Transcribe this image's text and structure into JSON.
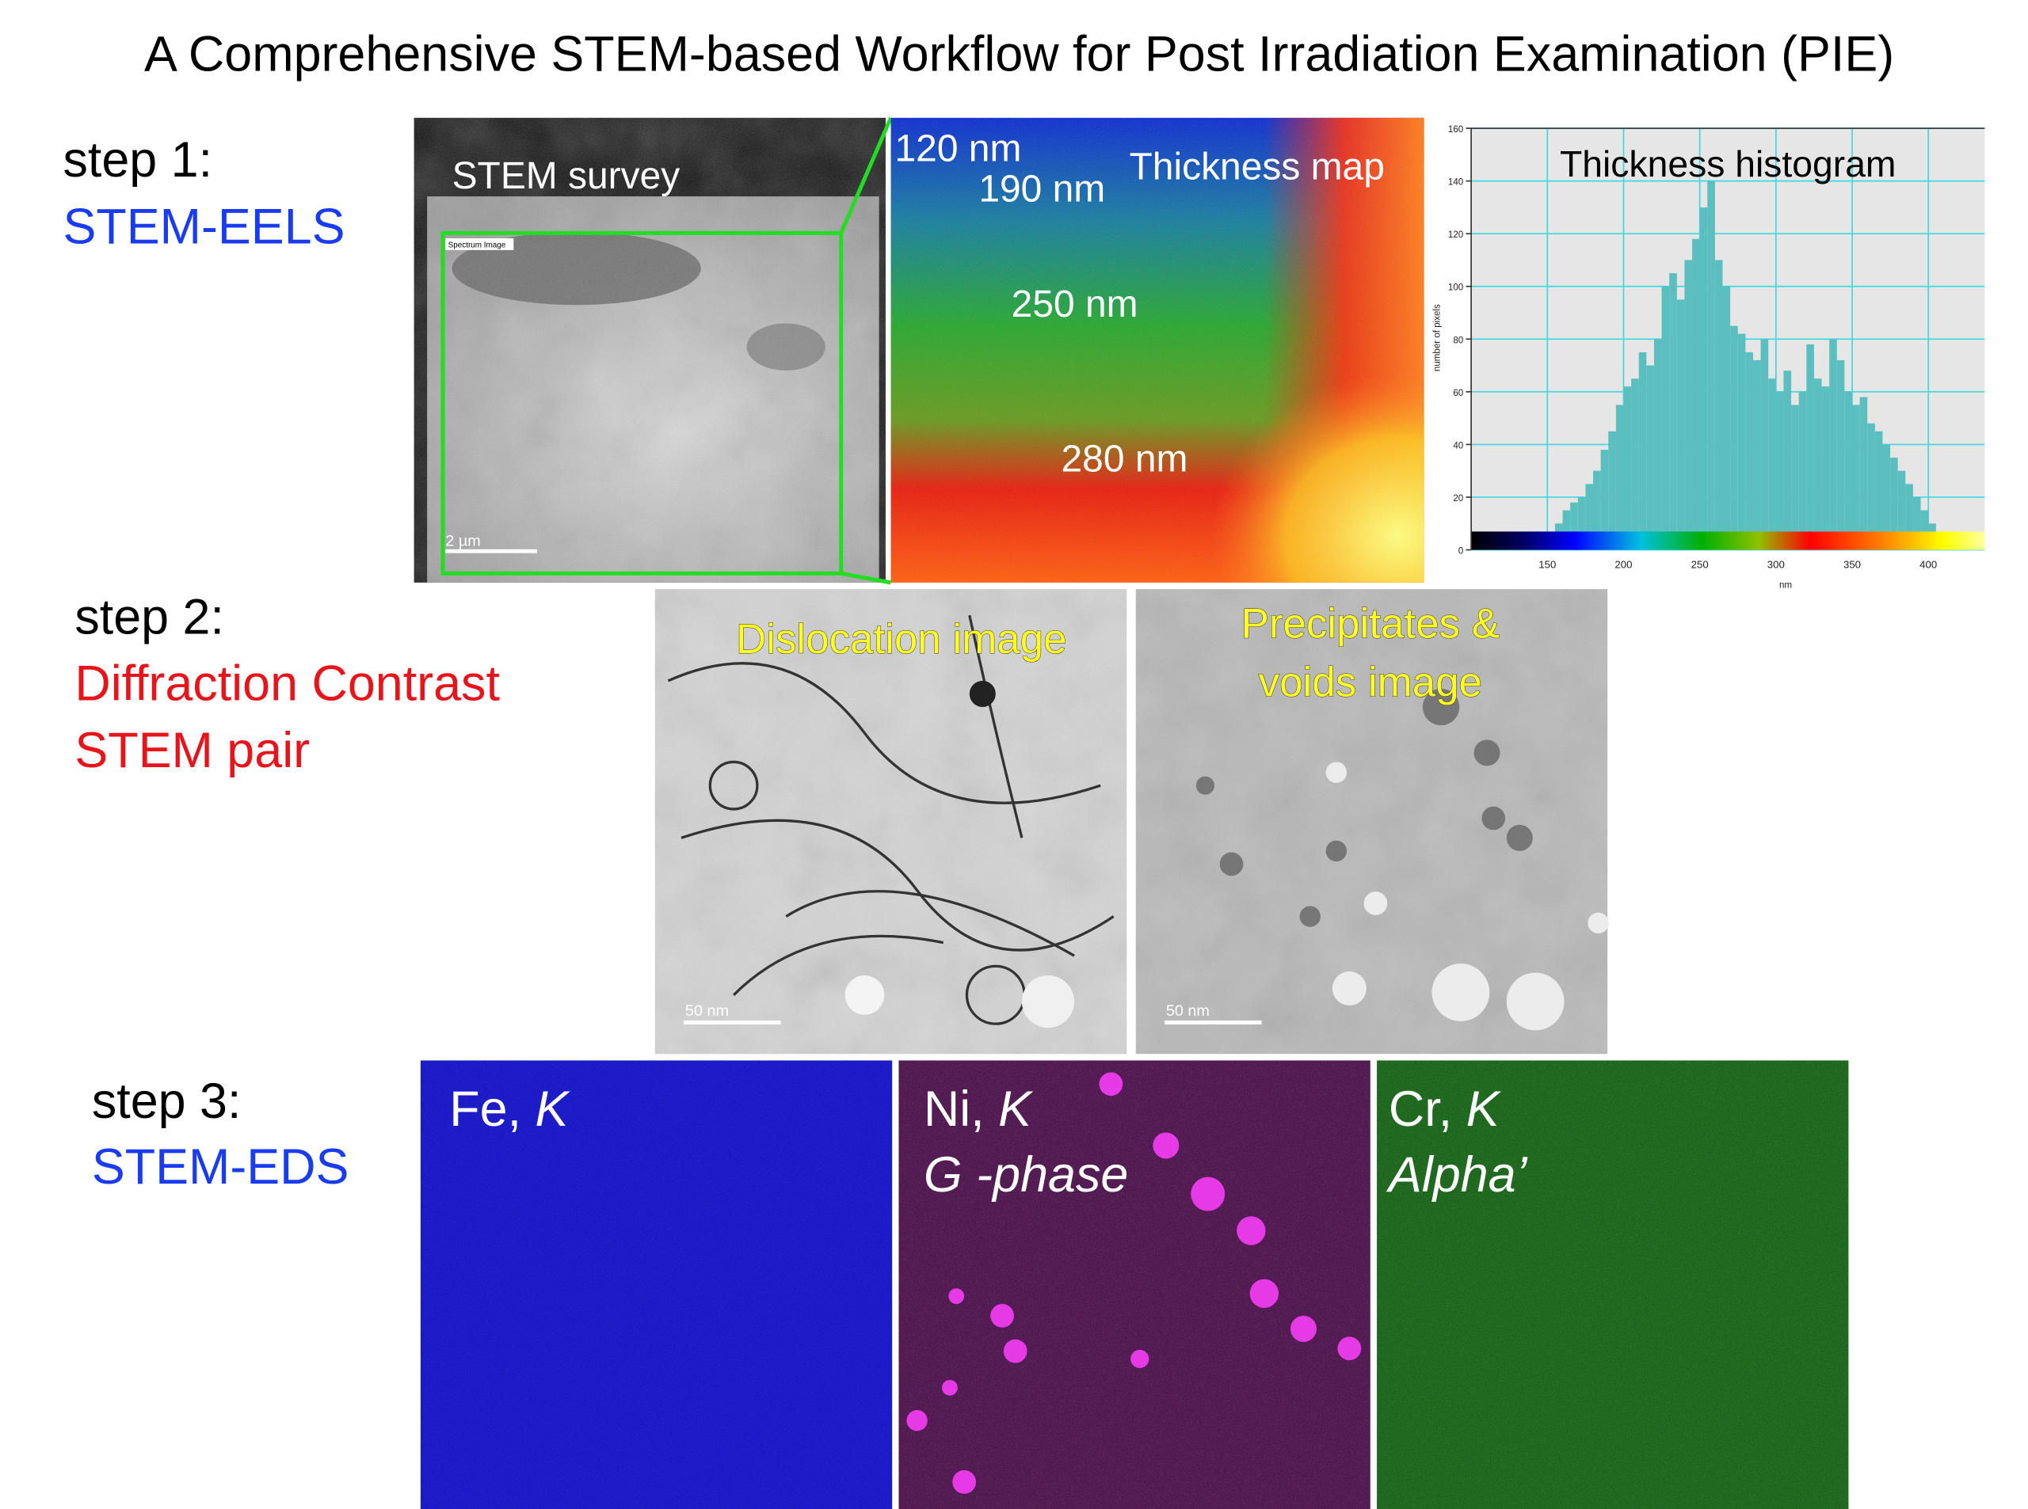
{
  "title": "A Comprehensive STEM-based Workflow for Post Irradiation Examination (PIE)",
  "step1": {
    "label": "step 1:",
    "method": "STEM-EELS",
    "survey": {
      "title": "STEM survey",
      "region": "Spectrum Image",
      "scale_bar": "2 µm"
    },
    "thickness_map": {
      "title": "Thickness map",
      "labels": [
        "120 nm",
        "190 nm",
        "250 nm",
        "280 nm"
      ]
    }
  },
  "chart_data": {
    "type": "histogram",
    "title": "Thickness histogram",
    "xlabel": "nm",
    "ylabel": "number of pixels",
    "bins": [
      140,
      145,
      150,
      155,
      160,
      165,
      170,
      175,
      180,
      185,
      190,
      195,
      200,
      205,
      210,
      215,
      220,
      225,
      230,
      235,
      240,
      245,
      250,
      255,
      260,
      265,
      270,
      275,
      280,
      285,
      290,
      295,
      300,
      305,
      310,
      315,
      320,
      325,
      330,
      335,
      340,
      345,
      350,
      355,
      360,
      365,
      370,
      375,
      380,
      385,
      390,
      395,
      400,
      405,
      410
    ],
    "counts": [
      2,
      3,
      5,
      10,
      15,
      18,
      20,
      25,
      30,
      38,
      45,
      55,
      62,
      65,
      75,
      70,
      80,
      100,
      105,
      95,
      110,
      118,
      130,
      140,
      110,
      100,
      85,
      82,
      75,
      72,
      80,
      65,
      60,
      68,
      55,
      60,
      78,
      65,
      62,
      80,
      72,
      60,
      55,
      58,
      48,
      45,
      40,
      35,
      30,
      25,
      20,
      15,
      10,
      5
    ],
    "color": "#5bbfc0",
    "xlim": [
      100,
      437
    ],
    "ylim": [
      0,
      160
    ],
    "xticks": [
      150,
      200,
      250,
      300,
      350,
      400
    ],
    "yticks": [
      0,
      20,
      40,
      60,
      80,
      100,
      120,
      140,
      160
    ],
    "grid": true
  },
  "step2": {
    "label": "step 2:",
    "method_lines": [
      "Diffraction Contrast",
      "STEM pair"
    ],
    "panels": [
      {
        "title_lines": [
          "Dislocation image"
        ],
        "scale_bar": "50 nm"
      },
      {
        "title_lines": [
          "Precipitates &",
          "voids image"
        ],
        "scale_bar": "50 nm"
      }
    ]
  },
  "step3": {
    "label": "step 3:",
    "method": "STEM-EDS",
    "maps": [
      {
        "element": "Fe,",
        "line": "K"
      },
      {
        "element": "Ni,",
        "line": "K",
        "phase": "G -phase"
      },
      {
        "element": "Cr,",
        "line": "K",
        "phase": "Alpha’"
      }
    ]
  }
}
